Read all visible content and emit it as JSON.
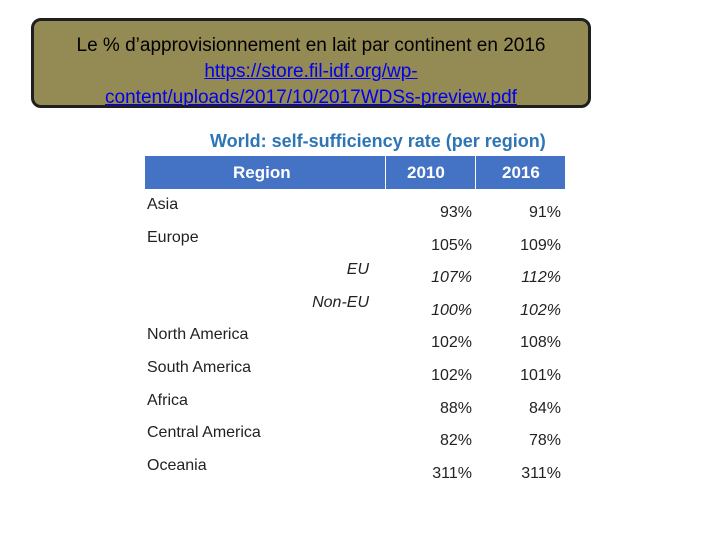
{
  "banner": {
    "title": "Le % d’approvisionnement en lait par continent en 2016",
    "link_line1": "https://store.fil-idf.org/wp-",
    "link_line2": "content/uploads/2017/10/2017WDSs-preview.pdf"
  },
  "table": {
    "title": "World: self-sufficiency rate (per region)",
    "headers": {
      "region": "Region",
      "y2010": "2010",
      "y2016": "2016"
    },
    "rows": [
      {
        "region": "Asia",
        "v2010": "93%",
        "v2016": "91%"
      },
      {
        "region": "Europe",
        "v2010": "105%",
        "v2016": "109%"
      },
      {
        "region": "EU",
        "v2010": "107%",
        "v2016": "112%"
      },
      {
        "region": "Non-EU",
        "v2010": "100%",
        "v2016": "102%"
      },
      {
        "region": "North America",
        "v2010": "102%",
        "v2016": "108%"
      },
      {
        "region": "South America",
        "v2010": "102%",
        "v2016": "101%"
      },
      {
        "region": "Africa",
        "v2010": "88%",
        "v2016": "84%"
      },
      {
        "region": "Central America",
        "v2010": "82%",
        "v2016": "78%"
      },
      {
        "region": "Oceania",
        "v2010": "311%",
        "v2016": "311%"
      }
    ]
  }
}
